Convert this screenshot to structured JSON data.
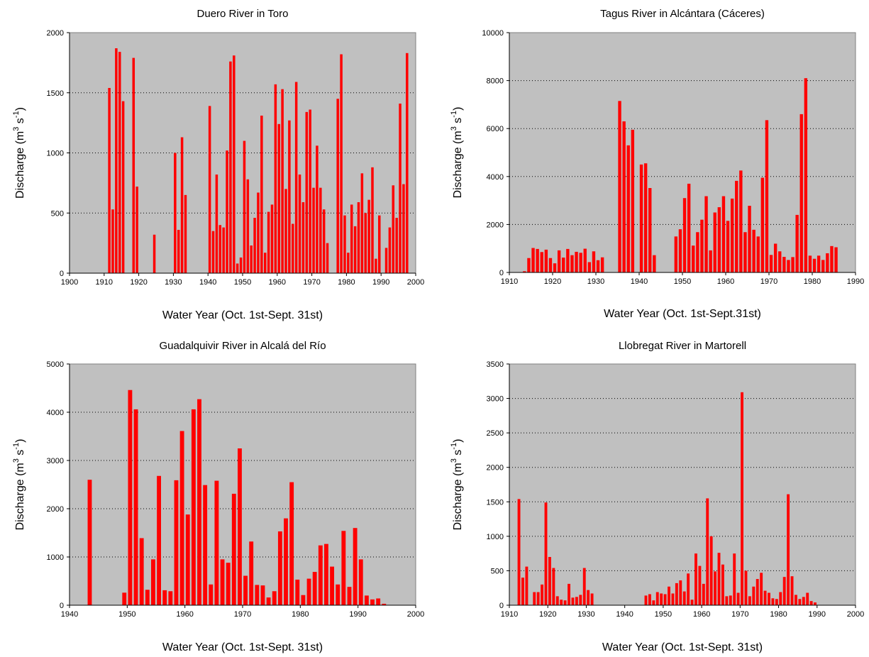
{
  "chart_data": [
    {
      "type": "bar",
      "title": "Duero River in Toro",
      "xlabel": "Water Year (Oct. 1st-Sept. 31st)",
      "ylabel": "Discharge (m3 s-1)",
      "xlim": [
        1900,
        2000
      ],
      "ylim": [
        0,
        2000
      ],
      "xticks": [
        1900,
        1910,
        1920,
        1930,
        1940,
        1950,
        1960,
        1970,
        1980,
        1990,
        2000
      ],
      "yticks": [
        0,
        500,
        1000,
        1500,
        2000
      ],
      "grid": true,
      "bar_color": "#ff0000",
      "x": [
        1911,
        1912,
        1913,
        1914,
        1915,
        1918,
        1919,
        1924,
        1930,
        1931,
        1932,
        1933,
        1940,
        1941,
        1942,
        1943,
        1944,
        1945,
        1946,
        1947,
        1948,
        1949,
        1950,
        1951,
        1952,
        1953,
        1954,
        1955,
        1956,
        1957,
        1958,
        1959,
        1960,
        1961,
        1962,
        1963,
        1964,
        1965,
        1966,
        1967,
        1968,
        1969,
        1970,
        1971,
        1972,
        1973,
        1974,
        1977,
        1978,
        1979,
        1980,
        1981,
        1982,
        1983,
        1984,
        1985,
        1986,
        1987,
        1988,
        1989,
        1991,
        1992,
        1993,
        1994,
        1995,
        1996,
        1997
      ],
      "values": [
        1540,
        530,
        1870,
        1840,
        1430,
        1790,
        720,
        320,
        1000,
        360,
        1130,
        650,
        1390,
        350,
        820,
        400,
        380,
        1020,
        1760,
        1810,
        80,
        130,
        1100,
        780,
        230,
        460,
        670,
        1310,
        170,
        510,
        570,
        1570,
        1240,
        1530,
        700,
        1270,
        410,
        1590,
        820,
        590,
        1340,
        1360,
        710,
        1060,
        710,
        530,
        250,
        1450,
        1820,
        480,
        170,
        570,
        390,
        590,
        830,
        500,
        610,
        880,
        120,
        480,
        210,
        380,
        730,
        460,
        1410,
        740,
        1830
      ]
    },
    {
      "type": "bar",
      "title": "Tagus River in Alcántara (Cáceres)",
      "xlabel": "Water Year (Oct. 1st-Sept.31st)",
      "ylabel": "Discharge (m3 s-1)",
      "xlim": [
        1910,
        1990
      ],
      "ylim": [
        0,
        10000
      ],
      "xticks": [
        1910,
        1920,
        1930,
        1940,
        1950,
        1960,
        1970,
        1980,
        1990
      ],
      "yticks": [
        0,
        2000,
        4000,
        6000,
        8000,
        10000
      ],
      "grid": true,
      "bar_color": "#ff0000",
      "x": [
        1913,
        1914,
        1915,
        1916,
        1917,
        1918,
        1919,
        1920,
        1921,
        1922,
        1923,
        1924,
        1925,
        1926,
        1927,
        1928,
        1929,
        1930,
        1931,
        1935,
        1936,
        1937,
        1938,
        1940,
        1941,
        1942,
        1943,
        1948,
        1949,
        1950,
        1951,
        1952,
        1953,
        1954,
        1955,
        1956,
        1957,
        1958,
        1959,
        1960,
        1961,
        1962,
        1963,
        1964,
        1965,
        1966,
        1967,
        1968,
        1969,
        1970,
        1971,
        1972,
        1973,
        1974,
        1975,
        1976,
        1977,
        1978,
        1979,
        1980,
        1981,
        1982,
        1983,
        1984,
        1985
      ],
      "values": [
        50,
        600,
        1020,
        980,
        850,
        950,
        600,
        380,
        920,
        620,
        980,
        720,
        860,
        820,
        990,
        430,
        880,
        510,
        630,
        7150,
        6300,
        5300,
        5950,
        4500,
        4550,
        3520,
        720,
        1500,
        1800,
        3100,
        3700,
        1120,
        1680,
        2200,
        3180,
        920,
        2500,
        2720,
        3180,
        2150,
        3080,
        3820,
        4250,
        1680,
        2780,
        1780,
        1500,
        3950,
        6350,
        730,
        1200,
        880,
        650,
        520,
        640,
        2400,
        6600,
        8100,
        700,
        570,
        700,
        520,
        800,
        1100,
        1050
      ]
    },
    {
      "type": "bar",
      "title": "Guadalquivir River in Alcalá del Río",
      "xlabel": "Water Year (Oct. 1st-Sept. 31st)",
      "ylabel": "Discharge (m3 s-1)",
      "xlim": [
        1940,
        2000
      ],
      "ylim": [
        0,
        5000
      ],
      "xticks": [
        1940,
        1950,
        1960,
        1970,
        1980,
        1990,
        2000
      ],
      "yticks": [
        0,
        1000,
        2000,
        3000,
        4000,
        5000
      ],
      "grid": true,
      "bar_color": "#ff0000",
      "x": [
        1943,
        1949,
        1950,
        1951,
        1952,
        1953,
        1954,
        1955,
        1956,
        1957,
        1958,
        1959,
        1960,
        1961,
        1962,
        1963,
        1964,
        1965,
        1966,
        1967,
        1968,
        1969,
        1970,
        1971,
        1972,
        1973,
        1974,
        1975,
        1976,
        1977,
        1978,
        1979,
        1980,
        1981,
        1982,
        1983,
        1984,
        1985,
        1986,
        1987,
        1988,
        1989,
        1990,
        1991,
        1992,
        1993,
        1994
      ],
      "values": [
        2600,
        260,
        4460,
        4060,
        1390,
        320,
        950,
        2680,
        310,
        290,
        2590,
        3610,
        1880,
        4060,
        4270,
        2490,
        430,
        2580,
        950,
        880,
        2310,
        3250,
        610,
        1320,
        420,
        410,
        160,
        290,
        1530,
        1800,
        2550,
        530,
        210,
        550,
        690,
        1240,
        1270,
        800,
        430,
        1540,
        380,
        1600,
        950,
        200,
        120,
        140,
        30
      ]
    },
    {
      "type": "bar",
      "title": "Llobregat River in Martorell",
      "xlabel": "Water Year (Oct. 1st-Sept. 31st)",
      "ylabel": "Discharge (m3 s-1)",
      "xlim": [
        1910,
        2000
      ],
      "ylim": [
        0,
        3500
      ],
      "xticks": [
        1910,
        1920,
        1930,
        1940,
        1950,
        1960,
        1970,
        1980,
        1990,
        2000
      ],
      "yticks": [
        0,
        500,
        1000,
        1500,
        2000,
        2500,
        3000,
        3500
      ],
      "grid": true,
      "bar_color": "#ff0000",
      "x": [
        1912,
        1913,
        1914,
        1916,
        1917,
        1918,
        1919,
        1920,
        1921,
        1922,
        1923,
        1924,
        1925,
        1926,
        1927,
        1928,
        1929,
        1930,
        1931,
        1945,
        1946,
        1947,
        1948,
        1949,
        1950,
        1951,
        1952,
        1953,
        1954,
        1955,
        1956,
        1957,
        1958,
        1959,
        1960,
        1961,
        1962,
        1963,
        1964,
        1965,
        1966,
        1967,
        1968,
        1969,
        1970,
        1971,
        1972,
        1973,
        1974,
        1975,
        1976,
        1977,
        1978,
        1979,
        1980,
        1981,
        1982,
        1983,
        1984,
        1985,
        1986,
        1987,
        1988,
        1989
      ],
      "values": [
        1540,
        400,
        560,
        190,
        190,
        300,
        1490,
        700,
        540,
        130,
        80,
        70,
        310,
        110,
        120,
        150,
        540,
        220,
        170,
        140,
        160,
        70,
        190,
        170,
        160,
        270,
        170,
        320,
        360,
        200,
        460,
        80,
        750,
        570,
        310,
        1550,
        1000,
        490,
        760,
        590,
        130,
        140,
        750,
        180,
        3090,
        500,
        130,
        270,
        380,
        470,
        210,
        180,
        100,
        90,
        190,
        410,
        1610,
        420,
        150,
        90,
        120,
        180,
        60,
        40
      ]
    }
  ]
}
